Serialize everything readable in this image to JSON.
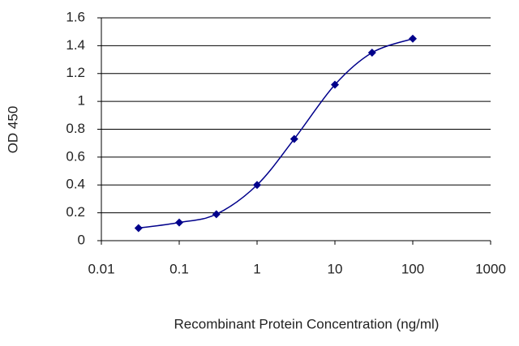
{
  "chart_data": {
    "type": "line",
    "x_label": "Recombinant Protein Concentration (ng/ml)",
    "y_label": "OD 450",
    "x": [
      0.03,
      0.1,
      0.3,
      1,
      3,
      10,
      30,
      100
    ],
    "series": [
      {
        "color": "#00008b",
        "values": [
          0.09,
          0.13,
          0.19,
          0.4,
          0.73,
          1.12,
          1.35,
          1.45
        ]
      }
    ],
    "xscale": "log",
    "xlim": [
      0.01,
      1000
    ],
    "xticks": [
      0.01,
      0.1,
      1,
      10,
      100,
      1000
    ],
    "ylim": [
      0,
      1.6
    ],
    "yticks": [
      0,
      0.2,
      0.4,
      0.6,
      0.8,
      1,
      1.2,
      1.4,
      1.6
    ],
    "grid": true
  }
}
